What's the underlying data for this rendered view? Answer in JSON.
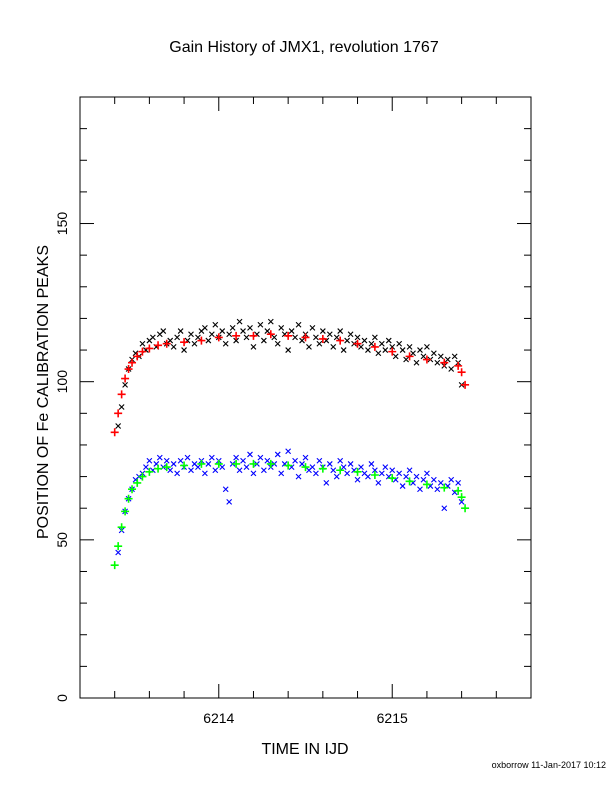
{
  "chart_data": {
    "type": "scatter",
    "title": "Gain History of JMX1, revolution 1767",
    "xlabel": "TIME IN IJD",
    "ylabel": "POSITION OF Fe CALIBRATION PEAKS",
    "footer": "oxborrow 11-Jan-2017 10:12",
    "xlim": [
      6213.2,
      6215.8
    ],
    "ylim": [
      0,
      190
    ],
    "x_ticks": [
      6214,
      6215
    ],
    "y_ticks": [
      0,
      50,
      100,
      150
    ],
    "grid": false,
    "legend": "none",
    "series": [
      {
        "marker": "x",
        "color": "#000000",
        "x": [
          6213.42,
          6213.44,
          6213.46,
          6213.48,
          6213.5,
          6213.52,
          6213.54,
          6213.56,
          6213.58,
          6213.6,
          6213.62,
          6213.64,
          6213.66,
          6213.68,
          6213.7,
          6213.72,
          6213.74,
          6213.76,
          6213.78,
          6213.8,
          6213.82,
          6213.84,
          6213.86,
          6213.88,
          6213.9,
          6213.92,
          6213.94,
          6213.96,
          6213.98,
          6214.0,
          6214.02,
          6214.04,
          6214.06,
          6214.08,
          6214.1,
          6214.12,
          6214.14,
          6214.16,
          6214.18,
          6214.2,
          6214.22,
          6214.24,
          6214.26,
          6214.28,
          6214.3,
          6214.32,
          6214.34,
          6214.36,
          6214.38,
          6214.4,
          6214.42,
          6214.44,
          6214.46,
          6214.48,
          6214.5,
          6214.52,
          6214.54,
          6214.56,
          6214.58,
          6214.6,
          6214.62,
          6214.64,
          6214.66,
          6214.68,
          6214.7,
          6214.72,
          6214.74,
          6214.76,
          6214.78,
          6214.8,
          6214.82,
          6214.84,
          6214.86,
          6214.88,
          6214.9,
          6214.92,
          6214.94,
          6214.96,
          6214.98,
          6215.0,
          6215.02,
          6215.04,
          6215.06,
          6215.08,
          6215.1,
          6215.12,
          6215.14,
          6215.16,
          6215.18,
          6215.2,
          6215.22,
          6215.24,
          6215.26,
          6215.28,
          6215.3,
          6215.32,
          6215.34,
          6215.36,
          6215.38,
          6215.4
        ],
        "y": [
          86,
          92,
          99,
          104,
          107,
          109,
          108,
          112,
          110,
          113,
          114,
          111,
          115,
          116,
          112,
          113,
          111,
          114,
          116,
          110,
          113,
          115,
          112,
          114,
          116,
          117,
          113,
          115,
          118,
          114,
          116,
          112,
          115,
          117,
          113,
          119,
          116,
          114,
          117,
          111,
          115,
          118,
          113,
          116,
          119,
          114,
          112,
          117,
          115,
          110,
          116,
          114,
          118,
          113,
          115,
          111,
          117,
          114,
          112,
          116,
          113,
          115,
          111,
          114,
          116,
          110,
          113,
          115,
          112,
          114,
          111,
          113,
          110,
          112,
          114,
          109,
          112,
          110,
          113,
          111,
          108,
          112,
          110,
          107,
          111,
          109,
          106,
          110,
          108,
          111,
          107,
          109,
          106,
          108,
          105,
          107,
          104,
          108,
          106,
          99
        ]
      },
      {
        "marker": "+",
        "color": "#ff0000",
        "x": [
          6213.4,
          6213.42,
          6213.44,
          6213.46,
          6213.48,
          6213.5,
          6213.53,
          6213.56,
          6213.6,
          6213.65,
          6213.7,
          6213.8,
          6213.9,
          6214.0,
          6214.1,
          6214.2,
          6214.3,
          6214.4,
          6214.5,
          6214.6,
          6214.7,
          6214.8,
          6214.9,
          6215.0,
          6215.1,
          6215.2,
          6215.3,
          6215.38,
          6215.4,
          6215.42
        ],
        "y": [
          84,
          90,
          96,
          101,
          104,
          106,
          108,
          109.5,
          110.5,
          111.5,
          112,
          112.5,
          113,
          114,
          114.5,
          114.5,
          115,
          114.5,
          114,
          113.5,
          113,
          112,
          111,
          109.5,
          108,
          107,
          106,
          105,
          103,
          99
        ]
      },
      {
        "marker": "x",
        "color": "#0000ff",
        "x": [
          6213.42,
          6213.44,
          6213.46,
          6213.48,
          6213.5,
          6213.52,
          6213.54,
          6213.56,
          6213.58,
          6213.6,
          6213.62,
          6213.64,
          6213.66,
          6213.68,
          6213.7,
          6213.72,
          6213.74,
          6213.76,
          6213.78,
          6213.8,
          6213.82,
          6213.84,
          6213.86,
          6213.88,
          6213.9,
          6213.92,
          6213.94,
          6213.96,
          6213.98,
          6214.0,
          6214.02,
          6214.04,
          6214.06,
          6214.08,
          6214.1,
          6214.12,
          6214.14,
          6214.16,
          6214.18,
          6214.2,
          6214.22,
          6214.24,
          6214.26,
          6214.28,
          6214.3,
          6214.32,
          6214.34,
          6214.36,
          6214.38,
          6214.4,
          6214.42,
          6214.44,
          6214.46,
          6214.48,
          6214.5,
          6214.52,
          6214.54,
          6214.56,
          6214.58,
          6214.6,
          6214.62,
          6214.64,
          6214.66,
          6214.68,
          6214.7,
          6214.72,
          6214.74,
          6214.76,
          6214.78,
          6214.8,
          6214.82,
          6214.84,
          6214.86,
          6214.88,
          6214.9,
          6214.92,
          6214.94,
          6214.96,
          6214.98,
          6215.0,
          6215.02,
          6215.04,
          6215.06,
          6215.08,
          6215.1,
          6215.12,
          6215.14,
          6215.16,
          6215.18,
          6215.2,
          6215.22,
          6215.24,
          6215.26,
          6215.28,
          6215.3,
          6215.32,
          6215.34,
          6215.36,
          6215.38,
          6215.4
        ],
        "y": [
          46,
          53,
          59,
          63,
          66,
          69,
          70,
          71,
          73,
          75,
          72,
          74,
          76,
          73,
          75,
          72,
          74,
          71,
          75,
          73,
          76,
          72,
          74,
          73,
          75,
          71,
          74,
          76,
          72,
          75,
          73,
          66,
          62,
          74,
          76,
          72,
          75,
          73,
          77,
          71,
          74,
          76,
          72,
          75,
          73,
          74,
          77,
          71,
          74,
          78,
          73,
          75,
          70,
          74,
          76,
          72,
          73,
          71,
          75,
          73,
          68,
          74,
          72,
          70,
          75,
          73,
          71,
          74,
          72,
          69,
          73,
          71,
          70,
          74,
          72,
          68,
          71,
          73,
          70,
          72,
          69,
          71,
          67,
          70,
          72,
          68,
          70,
          66,
          69,
          71,
          67,
          69,
          66,
          68,
          60,
          67,
          69,
          65,
          68,
          62
        ]
      },
      {
        "marker": "+",
        "color": "#00ff00",
        "x": [
          6213.4,
          6213.42,
          6213.44,
          6213.46,
          6213.48,
          6213.5,
          6213.53,
          6213.56,
          6213.6,
          6213.65,
          6213.7,
          6213.8,
          6213.9,
          6214.0,
          6214.1,
          6214.2,
          6214.3,
          6214.4,
          6214.5,
          6214.6,
          6214.7,
          6214.8,
          6214.9,
          6215.0,
          6215.1,
          6215.2,
          6215.3,
          6215.38,
          6215.4,
          6215.42
        ],
        "y": [
          42,
          48,
          54,
          59,
          63,
          66,
          68,
          70,
          71.5,
          72.5,
          73,
          73.5,
          74,
          74,
          74,
          74,
          74,
          73.5,
          73,
          72.5,
          72,
          71.5,
          70.5,
          69.5,
          68.5,
          67.5,
          66.5,
          65.5,
          63.5,
          60
        ]
      }
    ]
  }
}
